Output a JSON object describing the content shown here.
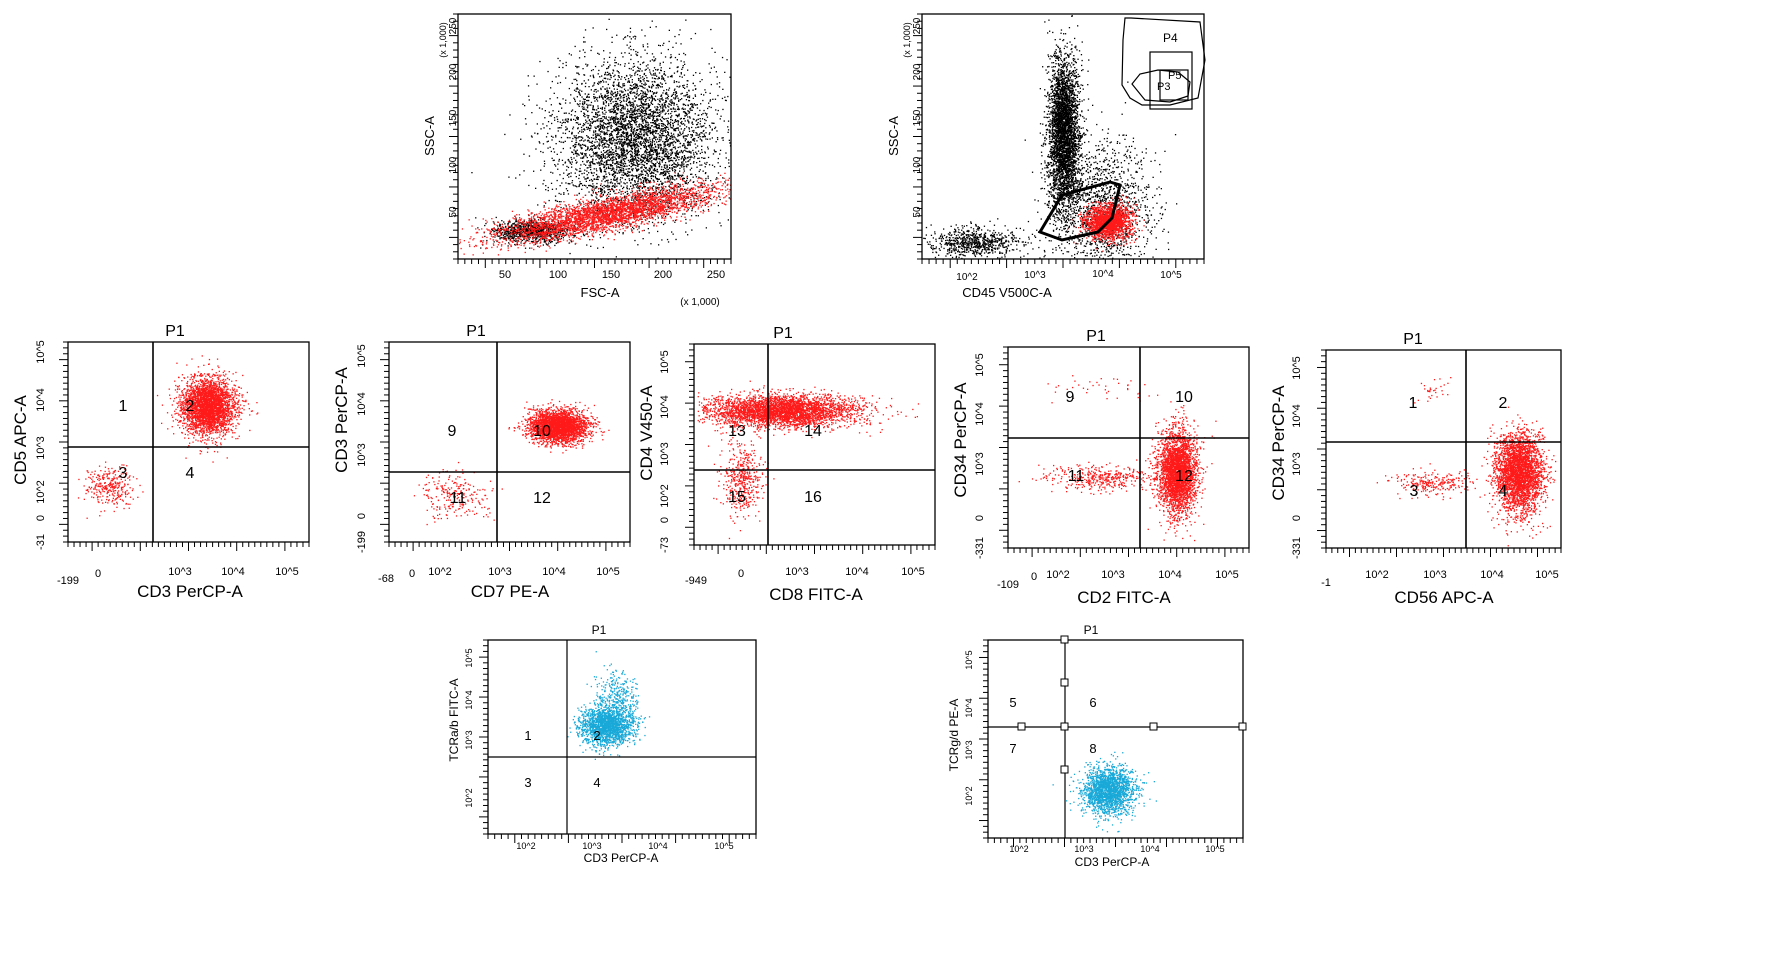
{
  "colors": {
    "black": "#000000",
    "red": "#ff1a1a",
    "cyan": "#19a9d8",
    "background": "#ffffff"
  },
  "chart_data": [
    {
      "id": "fsc-ssc",
      "type": "scatter",
      "title": "",
      "xlabel": "FSC-A",
      "ylabel": "SSC-A",
      "x_multiplier": "(x 1,000)",
      "y_multiplier": "(x 1,000)",
      "xlim": [
        0,
        262
      ],
      "ylim": [
        0,
        262
      ],
      "xticks": [
        50,
        100,
        150,
        200,
        250
      ],
      "yticks": [
        50,
        100,
        150,
        200,
        250
      ],
      "series": [
        {
          "color": "black",
          "clouds": [
            {
              "x": 170,
              "y": 130,
              "sx": 38,
              "sy": 42,
              "n": 4500
            },
            {
              "x": 70,
              "y": 30,
              "sx": 18,
              "sy": 6,
              "n": 900
            }
          ]
        },
        {
          "color": "red",
          "clouds": [
            {
              "x": 140,
              "y": 48,
              "sx": 55,
              "sy": 9,
              "band_slope": 0.22,
              "n": 3500
            }
          ]
        }
      ]
    },
    {
      "id": "cd45-ssc",
      "type": "scatter",
      "title": "",
      "xlabel": "CD45 V500C-A",
      "ylabel": "SSC-A",
      "y_multiplier": "(x 1,000)",
      "xscale": "log",
      "xlim": [
        1,
        5.4
      ],
      "ylim": [
        0,
        262
      ],
      "xticks": [
        "10^2",
        "10^3",
        "10^4",
        "10^5"
      ],
      "yticks": [
        50,
        100,
        150,
        200,
        250
      ],
      "gates": [
        "P4",
        "P5",
        "P3"
      ],
      "series": [
        {
          "color": "black",
          "clouds": [
            {
              "x": 3.2,
              "y": 135,
              "sx": 0.12,
              "sy": 40,
              "n": 3500
            },
            {
              "x": 1.8,
              "y": 18,
              "sx": 0.35,
              "sy": 8,
              "n": 700
            },
            {
              "x": 3.8,
              "y": 55,
              "sx": 0.4,
              "sy": 35,
              "n": 1400
            }
          ]
        },
        {
          "color": "red",
          "clouds": [
            {
              "x": 3.9,
              "y": 40,
              "sx": 0.18,
              "sy": 9,
              "n": 1800
            }
          ]
        }
      ]
    },
    {
      "id": "cd3-cd5",
      "type": "scatter",
      "title": "P1",
      "xlabel": "CD3 PerCP-A",
      "ylabel": "CD5 APC-A",
      "xticks": [
        "-199",
        "0",
        "10^3",
        "10^4",
        "10^5"
      ],
      "yticks": [
        "-31",
        "0",
        "10^2",
        "10^3",
        "10^4",
        "10^5"
      ],
      "quadrant_labels": [
        "1",
        "2",
        "3",
        "4"
      ],
      "series": [
        {
          "color": "red",
          "clouds": [
            {
              "x": 0.58,
              "y": 0.68,
              "sx": 0.055,
              "sy": 0.07,
              "n": 3000
            },
            {
              "x": 0.17,
              "y": 0.28,
              "sx": 0.05,
              "sy": 0.05,
              "n": 300
            }
          ]
        }
      ]
    },
    {
      "id": "cd7-cd3",
      "type": "scatter",
      "title": "P1",
      "xlabel": "CD7 PE-A",
      "ylabel": "CD3 PerCP-A",
      "xticks": [
        "-68",
        "0",
        "10^2",
        "10^3",
        "10^4",
        "10^5"
      ],
      "yticks": [
        "-199",
        "0",
        "10^3",
        "10^4",
        "10^5"
      ],
      "quadrant_labels": [
        "9",
        "10",
        "11",
        "12"
      ],
      "series": [
        {
          "color": "red",
          "clouds": [
            {
              "x": 0.7,
              "y": 0.58,
              "sx": 0.06,
              "sy": 0.04,
              "n": 2800
            },
            {
              "x": 0.27,
              "y": 0.23,
              "sx": 0.07,
              "sy": 0.06,
              "n": 250
            }
          ]
        }
      ]
    },
    {
      "id": "cd8-cd4",
      "type": "scatter",
      "title": "P1",
      "xlabel": "CD8 FITC-A",
      "ylabel": "CD4 V450-A",
      "xticks": [
        "-949",
        "0",
        "10^3",
        "10^4",
        "10^5"
      ],
      "yticks": [
        "-73",
        "0",
        "10^2",
        "10^3",
        "10^4",
        "10^5"
      ],
      "quadrant_labels": [
        "13",
        "14",
        "15",
        "16"
      ],
      "series": [
        {
          "color": "red",
          "clouds": [
            {
              "x": 0.36,
              "y": 0.67,
              "sx": 0.16,
              "sy": 0.04,
              "n": 3500
            },
            {
              "x": 0.2,
              "y": 0.33,
              "sx": 0.04,
              "sy": 0.09,
              "n": 450
            }
          ]
        }
      ]
    },
    {
      "id": "cd2-cd34",
      "type": "scatter",
      "title": "P1",
      "xlabel": "CD2 FITC-A",
      "ylabel": "CD34 PerCP-A",
      "xticks": [
        "-109",
        "0",
        "10^2",
        "10^3",
        "10^4",
        "10^5"
      ],
      "yticks": [
        "-331",
        "0",
        "10^3",
        "10^4",
        "10^5"
      ],
      "quadrant_labels": [
        "9",
        "10",
        "11",
        "12"
      ],
      "series": [
        {
          "color": "red",
          "clouds": [
            {
              "x": 0.7,
              "y": 0.38,
              "sx": 0.04,
              "sy": 0.1,
              "n": 3000
            },
            {
              "x": 0.4,
              "y": 0.35,
              "sx": 0.12,
              "sy": 0.03,
              "n": 400
            },
            {
              "x": 0.4,
              "y": 0.8,
              "sx": 0.12,
              "sy": 0.03,
              "n": 40
            }
          ]
        }
      ]
    },
    {
      "id": "cd56-cd34",
      "type": "scatter",
      "title": "P1",
      "xlabel": "CD56 APC-A",
      "ylabel": "CD34 PerCP-A",
      "xticks": [
        "-1",
        "10^2",
        "10^3",
        "10^4",
        "10^5"
      ],
      "yticks": [
        "-331",
        "0",
        "10^3",
        "10^4",
        "10^5"
      ],
      "quadrant_labels": [
        "1",
        "2",
        "3",
        "4"
      ],
      "series": [
        {
          "color": "red",
          "clouds": [
            {
              "x": 0.82,
              "y": 0.38,
              "sx": 0.05,
              "sy": 0.1,
              "n": 3000
            },
            {
              "x": 0.45,
              "y": 0.33,
              "sx": 0.09,
              "sy": 0.03,
              "n": 250
            },
            {
              "x": 0.45,
              "y": 0.8,
              "sx": 0.04,
              "sy": 0.03,
              "n": 30
            }
          ]
        }
      ]
    },
    {
      "id": "cd3-tcrab",
      "type": "scatter",
      "title": "P1",
      "xlabel": "CD3 PerCP-A",
      "ylabel": "TCRa/b FITC-A",
      "xticks": [
        "10^2",
        "10^3",
        "10^4",
        "10^5"
      ],
      "yticks": [
        "10^2",
        "10^3",
        "10^4",
        "10^5"
      ],
      "quadrant_labels": [
        "1",
        "2",
        "3",
        "4"
      ],
      "series": [
        {
          "color": "cyan",
          "clouds": [
            {
              "x": 0.44,
              "y": 0.56,
              "sx": 0.05,
              "sy": 0.05,
              "n": 1800
            },
            {
              "x": 0.48,
              "y": 0.7,
              "sx": 0.04,
              "sy": 0.07,
              "n": 350
            }
          ]
        }
      ]
    },
    {
      "id": "cd3-tcrgd",
      "type": "scatter",
      "title": "P1",
      "xlabel": "CD3 PerCP-A",
      "ylabel": "TCRg/d PE-A",
      "xticks": [
        "10^2",
        "10^3",
        "10^4",
        "10^5"
      ],
      "yticks": [
        "10^2",
        "10^3",
        "10^4",
        "10^5"
      ],
      "quadrant_labels": [
        "5",
        "6",
        "7",
        "8"
      ],
      "series": [
        {
          "color": "cyan",
          "clouds": [
            {
              "x": 0.47,
              "y": 0.24,
              "sx": 0.05,
              "sy": 0.06,
              "n": 2000
            }
          ]
        }
      ]
    }
  ]
}
